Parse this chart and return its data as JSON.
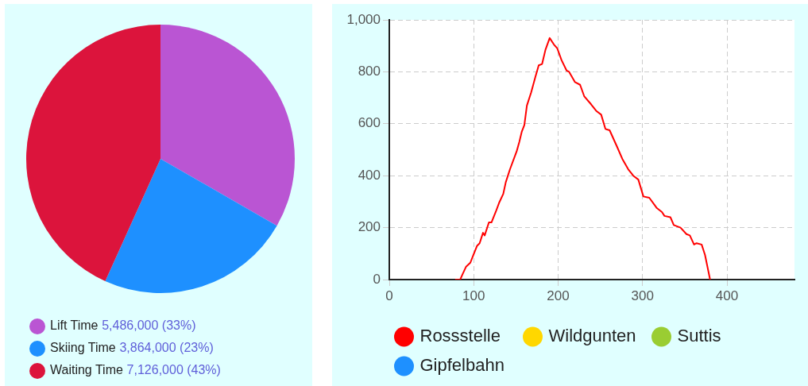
{
  "chart_data": [
    {
      "type": "pie",
      "categories": [
        "Lift Time",
        "Skiing Time",
        "Waiting Time"
      ],
      "values": [
        5486000,
        3864000,
        7126000
      ],
      "colors": [
        "#ba55d3",
        "#1e90ff",
        "#dc143c"
      ],
      "value_labels": [
        "5,486,000 (33%)",
        "3,864,000 (23%)",
        "7,126,000 (43%)"
      ],
      "legend": "bottom"
    },
    {
      "type": "line",
      "x": [
        78,
        84,
        86,
        91,
        96,
        99,
        104,
        107,
        111,
        113,
        118,
        121,
        126,
        130,
        135,
        138,
        143,
        151,
        154,
        157,
        160,
        163,
        168,
        173,
        177,
        181,
        185,
        190,
        195,
        199,
        204,
        210,
        213,
        220,
        226,
        231,
        239,
        245,
        251,
        256,
        261,
        270,
        276,
        283,
        289,
        295,
        301,
        308,
        317,
        323,
        326,
        333,
        337,
        345,
        352,
        356,
        361,
        364,
        370,
        374,
        380
      ],
      "series": [
        {
          "name": "Rossstelle",
          "color": "#ff0000",
          "values": [
            0,
            0,
            15,
            50,
            65,
            90,
            130,
            140,
            180,
            170,
            220,
            220,
            260,
            295,
            330,
            375,
            425,
            495,
            530,
            570,
            595,
            670,
            720,
            780,
            825,
            830,
            885,
            930,
            905,
            890,
            845,
            805,
            800,
            760,
            750,
            705,
            675,
            650,
            635,
            580,
            575,
            510,
            465,
            425,
            400,
            385,
            320,
            315,
            275,
            260,
            245,
            240,
            210,
            200,
            175,
            170,
            135,
            140,
            135,
            95,
            0
          ]
        },
        {
          "name": "Wildgunten",
          "color": "#ffd700",
          "values": [
            null,
            null,
            null,
            null,
            null,
            null,
            null,
            null,
            null,
            null,
            null,
            null,
            null,
            null,
            null,
            null,
            null,
            null,
            null,
            null,
            null,
            null,
            null,
            null,
            null,
            null,
            null,
            null,
            null,
            null,
            null,
            null,
            null,
            null,
            null,
            null,
            null,
            null,
            null,
            null,
            null,
            null,
            null,
            null,
            null,
            null,
            null,
            null,
            null,
            null,
            null,
            null,
            null,
            null,
            null,
            null,
            null,
            null,
            null,
            null,
            null
          ]
        },
        {
          "name": "Suttis",
          "color": "#9acd32",
          "values": [
            null,
            null,
            null,
            null,
            null,
            null,
            null,
            null,
            null,
            null,
            null,
            null,
            null,
            null,
            null,
            null,
            null,
            null,
            null,
            null,
            null,
            null,
            null,
            null,
            null,
            null,
            null,
            null,
            null,
            null,
            null,
            null,
            null,
            null,
            null,
            null,
            null,
            null,
            null,
            null,
            null,
            null,
            null,
            null,
            null,
            null,
            null,
            null,
            null,
            null,
            null,
            null,
            null,
            null,
            null,
            null,
            null,
            null,
            null,
            null,
            null
          ]
        },
        {
          "name": "Gipfelbahn",
          "color": "#1e90ff",
          "values": [
            null,
            null,
            null,
            null,
            null,
            null,
            null,
            null,
            null,
            null,
            null,
            null,
            null,
            null,
            null,
            null,
            null,
            null,
            null,
            null,
            null,
            null,
            null,
            null,
            null,
            null,
            null,
            null,
            null,
            null,
            null,
            null,
            null,
            null,
            null,
            null,
            null,
            null,
            null,
            null,
            null,
            null,
            null,
            null,
            null,
            null,
            null,
            null,
            null,
            null,
            null,
            null,
            null,
            null,
            null,
            null,
            null,
            null,
            null,
            null,
            null
          ]
        }
      ],
      "xlim": [
        0,
        480
      ],
      "xticks": [
        0,
        100,
        200,
        300,
        400
      ],
      "ylim": [
        0,
        1000
      ],
      "yticks": [
        0,
        200,
        400,
        600,
        800,
        {
          "value": 1000,
          "label": "1,000"
        }
      ],
      "grid": true,
      "legend": "bottom",
      "marker": "none"
    }
  ]
}
